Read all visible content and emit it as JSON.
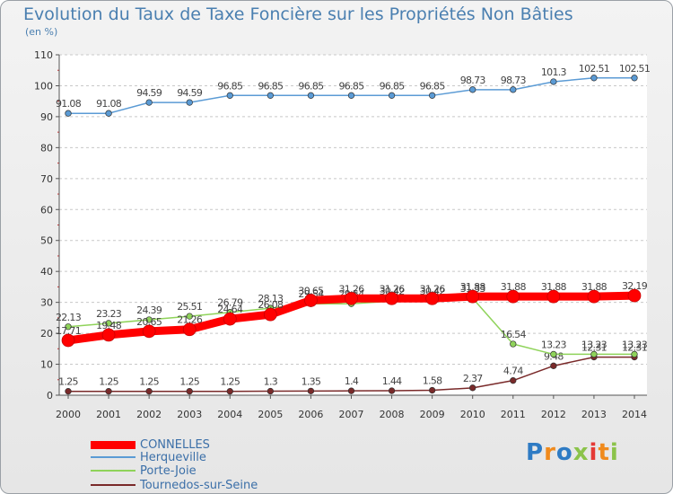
{
  "chart_data": {
    "type": "line",
    "title": "Evolution du Taux de Taxe Foncière sur les Propriétés Non Bâties",
    "ylabel": "(en %)",
    "xlabel": "",
    "ylim": [
      0,
      110
    ],
    "yticks": [
      "0",
      "10",
      "20",
      "30",
      "40",
      "50",
      "60",
      "70",
      "80",
      "90",
      "100",
      "110"
    ],
    "grid": "horizontal-dashed",
    "categories": [
      "2000",
      "2001",
      "2002",
      "2003",
      "2004",
      "2005",
      "2006",
      "2007",
      "2008",
      "2009",
      "2010",
      "2011",
      "2012",
      "2013",
      "2014"
    ],
    "series": [
      {
        "name": "Tournedos-sur-Seine",
        "color": "#7a2a2a",
        "values": [
          1.25,
          1.25,
          1.25,
          1.25,
          1.25,
          1.3,
          1.35,
          1.4,
          1.44,
          1.58,
          2.37,
          4.74,
          9.48,
          12.31,
          12.31
        ],
        "labels": [
          "1.25",
          "1.25",
          "1.25",
          "1.25",
          "1.25",
          "1.3",
          "1.35",
          "1.4",
          "1.44",
          "1.58",
          "2.37",
          "4.74",
          "9.48",
          "12.31",
          "12.31"
        ]
      },
      {
        "name": "Porte-Joie",
        "color": "#8fd35a",
        "values": [
          22.13,
          23.23,
          24.39,
          25.51,
          26.79,
          28.13,
          29.54,
          29.54,
          30.42,
          30.42,
          31.33,
          16.54,
          13.23,
          13.23,
          13.23
        ],
        "labels": [
          "22.13",
          "23.23",
          "24.39",
          "25.51",
          "26.79",
          "28.13",
          "29.54",
          "29.54",
          "30.42",
          "30.42",
          "31.33",
          "16.54",
          "13.23",
          "13.23",
          "13.23"
        ]
      },
      {
        "name": "Herqueville",
        "color": "#5b9bd5",
        "values": [
          91.08,
          91.08,
          94.59,
          94.59,
          96.85,
          96.85,
          96.85,
          96.85,
          96.85,
          96.85,
          98.73,
          98.73,
          101.3,
          102.51,
          102.51
        ],
        "labels": [
          "91.08",
          "91.08",
          "94.59",
          "94.59",
          "96.85",
          "96.85",
          "96.85",
          "96.85",
          "96.85",
          "96.85",
          "98.73",
          "98.73",
          "101.3",
          "102.51",
          "102.51"
        ]
      },
      {
        "name": "CONNELLES",
        "color": "#ff0000",
        "values": [
          17.71,
          19.48,
          20.65,
          21.26,
          24.64,
          26.08,
          30.65,
          31.26,
          31.26,
          31.26,
          31.88,
          31.88,
          31.88,
          31.88,
          32.19
        ],
        "labels": [
          "17.71",
          "19.48",
          "20.65",
          "21.26",
          "24.64",
          "26.08",
          "30.65",
          "31.26",
          "31.26",
          "31.26",
          "31.88",
          "31.88",
          "31.88",
          "31.88",
          "32.19"
        ]
      }
    ],
    "legend": [
      "CONNELLES",
      "Herqueville",
      "Porte-Joie",
      "Tournedos-sur-Seine"
    ],
    "legend_colors": [
      "#ff0000",
      "#5b9bd5",
      "#8fd35a",
      "#7a2a2a"
    ],
    "legend_placement": "bottom-left"
  },
  "branding": {
    "logo_text": "Proxiti",
    "letter_colors": [
      "#2e7bc4",
      "#f08a1c",
      "#2e7bc4",
      "#8bc34a",
      "#e53935",
      "#f08a1c",
      "#8bc34a"
    ]
  }
}
